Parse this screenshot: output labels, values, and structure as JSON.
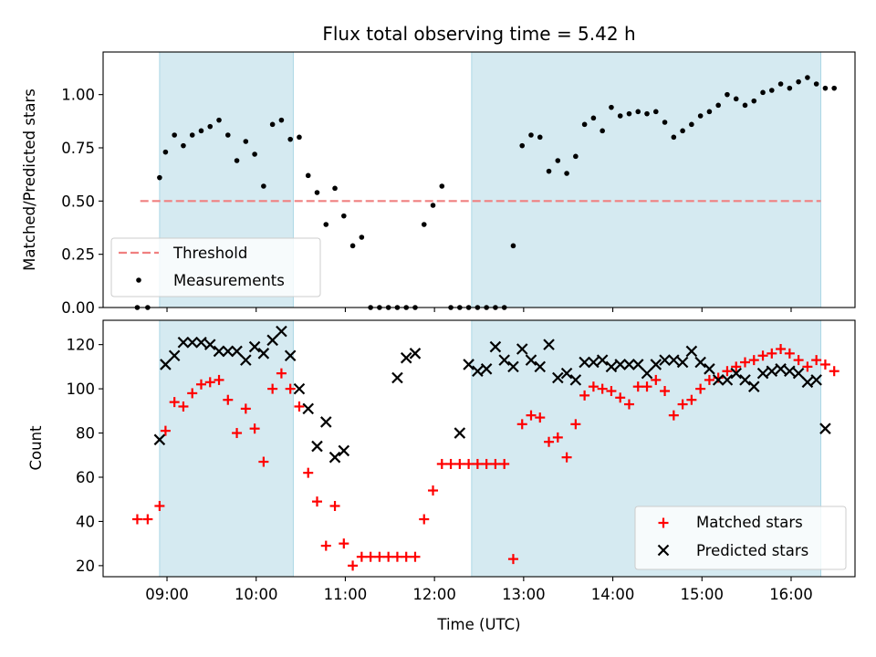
{
  "figure": {
    "title": "Flux total observing time = 5.42 h",
    "xlabel": "Time (UTC)"
  },
  "chart_data": [
    {
      "type": "scatter",
      "ylabel": "Matched/Predicted stars",
      "xlim": [
        "08:17",
        "16:43"
      ],
      "ylim": [
        0,
        1.2
      ],
      "y_ticks": [
        "0.00",
        "0.25",
        "0.50",
        "0.75",
        "1.00"
      ],
      "shaded_intervals": [
        [
          "08:55",
          "10:25"
        ],
        [
          "12:25",
          "16:20"
        ]
      ],
      "shade_color": "#d5eaf1",
      "threshold": {
        "name": "Threshold",
        "value": 0.5,
        "x_range": [
          "08:42",
          "16:20"
        ],
        "color": "#f08080"
      },
      "series": [
        {
          "name": "Measurements",
          "color": "#000000",
          "x": [
            "08:40",
            "08:47",
            "08:55",
            "08:59",
            "09:05",
            "09:11",
            "09:17",
            "09:23",
            "09:29",
            "09:35",
            "09:41",
            "09:47",
            "09:53",
            "09:59",
            "10:05",
            "10:11",
            "10:17",
            "10:23",
            "10:29",
            "10:35",
            "10:41",
            "10:47",
            "10:53",
            "10:59",
            "11:05",
            "11:11",
            "11:17",
            "11:23",
            "11:29",
            "11:35",
            "11:41",
            "11:47",
            "11:53",
            "11:59",
            "12:05",
            "12:11",
            "12:17",
            "12:23",
            "12:29",
            "12:35",
            "12:41",
            "12:47",
            "12:53",
            "12:59",
            "13:05",
            "13:11",
            "13:17",
            "13:23",
            "13:29",
            "13:35",
            "13:41",
            "13:47",
            "13:53",
            "13:59",
            "14:05",
            "14:11",
            "14:17",
            "14:23",
            "14:29",
            "14:35",
            "14:41",
            "14:47",
            "14:53",
            "14:59",
            "15:05",
            "15:11",
            "15:17",
            "15:23",
            "15:29",
            "15:35",
            "15:41",
            "15:47",
            "15:53",
            "15:59",
            "16:05",
            "16:11",
            "16:17",
            "16:23",
            "16:29"
          ],
          "y": [
            0,
            0,
            0.61,
            0.73,
            0.81,
            0.76,
            0.81,
            0.83,
            0.85,
            0.88,
            0.81,
            0.69,
            0.78,
            0.72,
            0.57,
            0.86,
            0.88,
            0.79,
            0.8,
            0.62,
            0.54,
            0.39,
            0.56,
            0.43,
            0.29,
            0.33,
            0,
            0,
            0,
            0,
            0,
            0,
            0.39,
            0.48,
            0.57,
            0,
            0,
            0,
            0,
            0,
            0,
            0,
            0.29,
            0.76,
            0.81,
            0.8,
            0.64,
            0.69,
            0.63,
            0.71,
            0.86,
            0.89,
            0.83,
            0.94,
            0.9,
            0.91,
            0.92,
            0.91,
            0.92,
            0.87,
            0.8,
            0.83,
            0.86,
            0.9,
            0.92,
            0.95,
            1.0,
            0.98,
            0.95,
            0.97,
            1.01,
            1.02,
            1.05,
            1.03,
            1.06,
            1.08,
            1.05,
            1.03,
            1.03
          ]
        }
      ]
    },
    {
      "type": "scatter",
      "ylabel": "Count",
      "xlim": [
        "08:17",
        "16:43"
      ],
      "ylim": [
        15,
        131
      ],
      "x_ticks": [
        "09:00",
        "10:00",
        "11:00",
        "12:00",
        "13:00",
        "14:00",
        "15:00",
        "16:00"
      ],
      "y_ticks": [
        "20",
        "40",
        "60",
        "80",
        "100",
        "120"
      ],
      "shaded_intervals": [
        [
          "08:55",
          "10:25"
        ],
        [
          "12:25",
          "16:20"
        ]
      ],
      "shade_color": "#d5eaf1",
      "series": [
        {
          "name": "Matched stars",
          "marker": "plus",
          "color": "#ff0000",
          "x": [
            "08:40",
            "08:47",
            "08:55",
            "08:59",
            "09:05",
            "09:11",
            "09:17",
            "09:23",
            "09:29",
            "09:35",
            "09:41",
            "09:47",
            "09:53",
            "09:59",
            "10:05",
            "10:11",
            "10:17",
            "10:23",
            "10:29",
            "10:35",
            "10:41",
            "10:47",
            "10:53",
            "10:59",
            "11:05",
            "11:11",
            "11:17",
            "11:23",
            "11:29",
            "11:35",
            "11:41",
            "11:47",
            "11:53",
            "11:59",
            "12:05",
            "12:11",
            "12:17",
            "12:23",
            "12:29",
            "12:35",
            "12:41",
            "12:47",
            "12:53",
            "12:59",
            "13:05",
            "13:11",
            "13:17",
            "13:23",
            "13:29",
            "13:35",
            "13:41",
            "13:47",
            "13:53",
            "13:59",
            "14:05",
            "14:11",
            "14:17",
            "14:23",
            "14:29",
            "14:35",
            "14:41",
            "14:47",
            "14:53",
            "14:59",
            "15:05",
            "15:11",
            "15:17",
            "15:23",
            "15:29",
            "15:35",
            "15:41",
            "15:47",
            "15:53",
            "15:59",
            "16:05",
            "16:11",
            "16:17",
            "16:23",
            "16:29"
          ],
          "y": [
            41,
            41,
            47,
            81,
            94,
            92,
            98,
            102,
            103,
            104,
            95,
            80,
            91,
            82,
            67,
            100,
            107,
            100,
            92,
            62,
            49,
            29,
            47,
            30,
            20,
            24,
            24,
            24,
            24,
            24,
            24,
            24,
            41,
            54,
            66,
            66,
            66,
            66,
            66,
            66,
            66,
            66,
            23,
            84,
            88,
            87,
            76,
            78,
            69,
            84,
            97,
            101,
            100,
            99,
            96,
            93,
            101,
            101,
            104,
            99,
            88,
            93,
            95,
            100,
            104,
            105,
            108,
            110,
            112,
            113,
            115,
            116,
            118,
            116,
            113,
            110,
            113,
            111,
            108
          ]
        },
        {
          "name": "Predicted stars",
          "marker": "x",
          "color": "#000000",
          "x": [
            "08:55",
            "08:59",
            "09:05",
            "09:11",
            "09:17",
            "09:23",
            "09:29",
            "09:35",
            "09:41",
            "09:47",
            "09:53",
            "09:59",
            "10:05",
            "10:11",
            "10:17",
            "10:23",
            "10:29",
            "10:35",
            "10:41",
            "10:47",
            "10:53",
            "10:59",
            "11:35",
            "11:41",
            "11:47",
            "12:17",
            "12:23",
            "12:29",
            "12:35",
            "12:41",
            "12:47",
            "12:53",
            "12:59",
            "13:05",
            "13:11",
            "13:17",
            "13:23",
            "13:29",
            "13:35",
            "13:41",
            "13:47",
            "13:53",
            "13:59",
            "14:05",
            "14:11",
            "14:17",
            "14:23",
            "14:29",
            "14:35",
            "14:41",
            "14:47",
            "14:53",
            "14:59",
            "15:05",
            "15:11",
            "15:17",
            "15:23",
            "15:29",
            "15:35",
            "15:41",
            "15:47",
            "15:53",
            "15:59",
            "16:05",
            "16:11",
            "16:17",
            "16:23"
          ],
          "y": [
            77,
            111,
            115,
            121,
            121,
            121,
            120,
            117,
            117,
            117,
            113,
            119,
            116,
            122,
            126,
            115,
            100,
            91,
            74,
            85,
            69,
            72,
            105,
            114,
            116,
            80,
            111,
            108,
            109,
            119,
            113,
            110,
            118,
            113,
            110,
            120,
            105,
            107,
            104,
            112,
            112,
            113,
            110,
            111,
            111,
            111,
            107,
            111,
            113,
            113,
            112,
            117,
            112,
            109,
            104,
            104,
            107,
            104,
            101,
            107,
            108,
            109,
            108,
            107,
            103,
            104,
            82
          ]
        }
      ]
    }
  ]
}
